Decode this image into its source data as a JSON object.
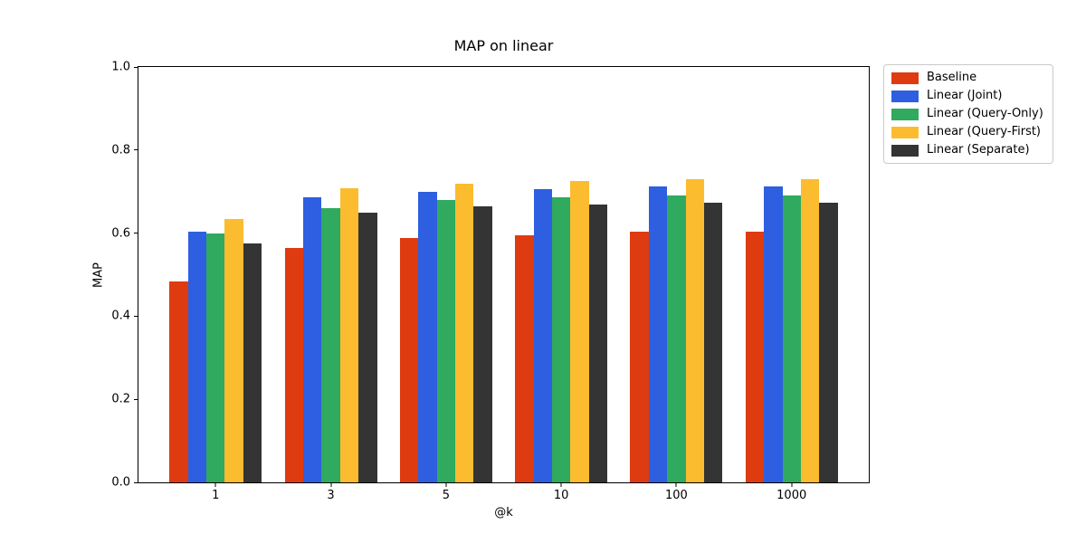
{
  "chart_data": {
    "type": "bar",
    "title": "MAP on linear",
    "xlabel": "@k",
    "ylabel": "MAP",
    "categories": [
      "1",
      "3",
      "5",
      "10",
      "100",
      "1000"
    ],
    "series": [
      {
        "name": "Baseline",
        "color": "#de3b10",
        "values": [
          0.483,
          0.565,
          0.589,
          0.595,
          0.604,
          0.604
        ]
      },
      {
        "name": "Linear (Joint)",
        "color": "#2e5fe0",
        "values": [
          0.604,
          0.686,
          0.699,
          0.706,
          0.712,
          0.712
        ]
      },
      {
        "name": "Linear (Query-Only)",
        "color": "#2faa5e",
        "values": [
          0.6,
          0.661,
          0.68,
          0.686,
          0.69,
          0.69
        ]
      },
      {
        "name": "Linear (Query-First)",
        "color": "#fcbc2f",
        "values": [
          0.634,
          0.708,
          0.719,
          0.725,
          0.73,
          0.73
        ]
      },
      {
        "name": "Linear (Separate)",
        "color": "#343434",
        "values": [
          0.576,
          0.649,
          0.665,
          0.668,
          0.674,
          0.674
        ]
      }
    ],
    "ylim": [
      0.0,
      1.0
    ],
    "yticks": [
      "0.0",
      "0.2",
      "0.4",
      "0.6",
      "0.8",
      "1.0"
    ],
    "grid": false,
    "legend_position": "upper-right-outside",
    "colors": {
      "background": "#ffffff",
      "axis": "#000000",
      "legend_border": "#c9c9c9",
      "text": "#000000"
    }
  }
}
